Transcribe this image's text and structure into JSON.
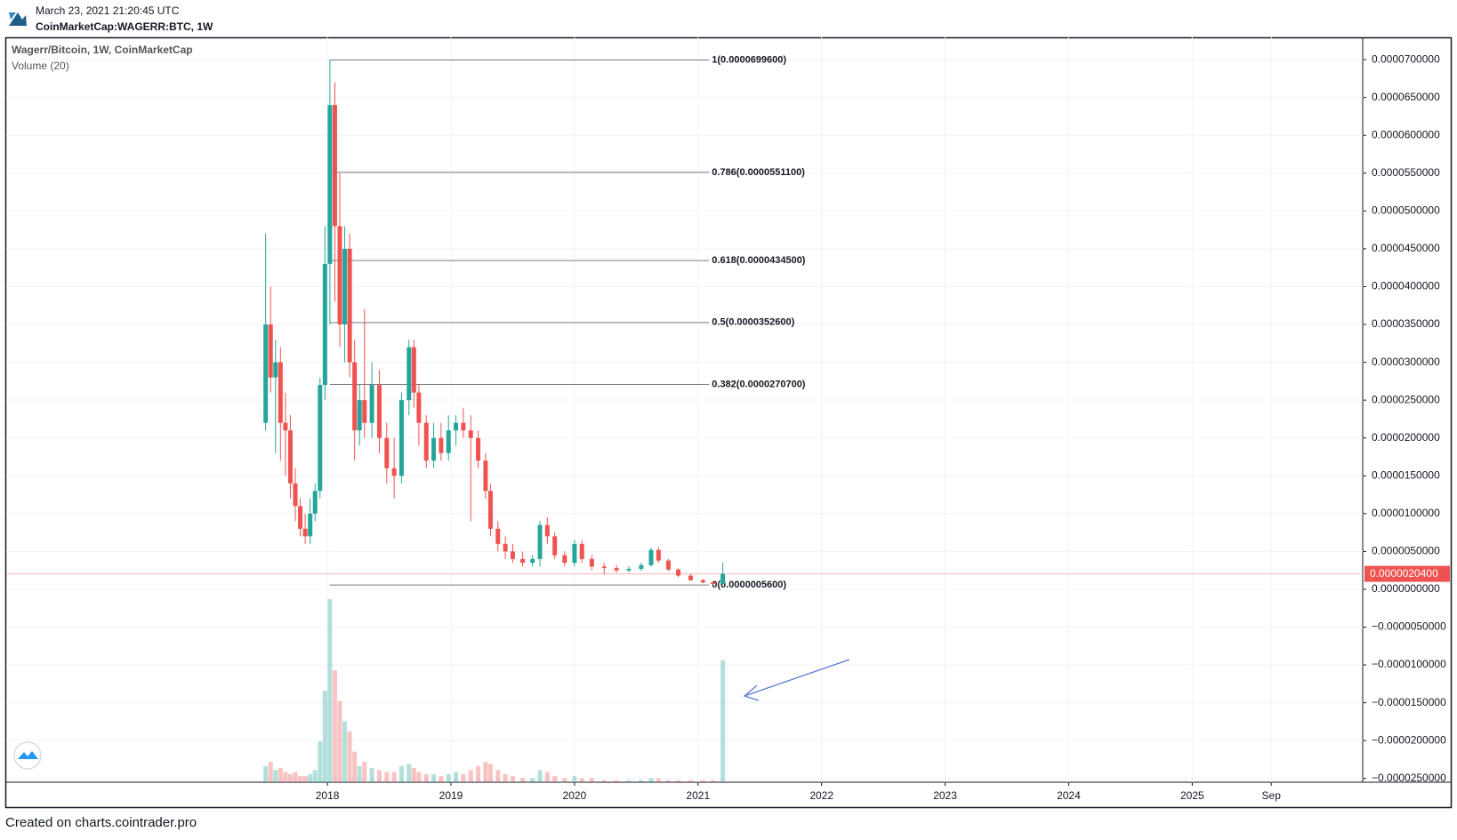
{
  "header": {
    "timestamp": "March 23, 2021 21:20:45 UTC",
    "symbol": "CoinMarketCap:WAGERR:BTC, 1W"
  },
  "footer": "Created on charts.cointrader.pro",
  "chart_data": {
    "type": "candlestick",
    "title": "Wagerr/Bitcoin, 1W, CoinMarketCap",
    "volume_label": "Volume (20)",
    "up_color": "#26a69a",
    "down_color": "#ef5350",
    "grid": true,
    "xlim": [
      2015.4,
      2026.38
    ],
    "xticks": [
      2018,
      2019,
      2020,
      2021,
      2022,
      2023,
      2024,
      2025,
      {
        "value": 2025.64,
        "label": "Sep"
      }
    ],
    "ylim": [
      -2.55e-05,
      7.295e-05
    ],
    "yticks": [
      {
        "value": 7e-05,
        "label": "0.0000700000"
      },
      {
        "value": 6.5e-05,
        "label": "0.0000650000"
      },
      {
        "value": 6e-05,
        "label": "0.0000600000"
      },
      {
        "value": 5.5e-05,
        "label": "0.0000550000"
      },
      {
        "value": 5e-05,
        "label": "0.0000500000"
      },
      {
        "value": 4.5e-05,
        "label": "0.0000450000"
      },
      {
        "value": 4e-05,
        "label": "0.0000400000"
      },
      {
        "value": 3.5e-05,
        "label": "0.0000350000"
      },
      {
        "value": 3e-05,
        "label": "0.0000300000"
      },
      {
        "value": 2.5e-05,
        "label": "0.0000250000"
      },
      {
        "value": 2e-05,
        "label": "0.0000200000"
      },
      {
        "value": 1.5e-05,
        "label": "0.0000150000"
      },
      {
        "value": 1e-05,
        "label": "0.0000100000"
      },
      {
        "value": 5e-06,
        "label": "0.0000050000"
      },
      {
        "value": 0,
        "label": "0.0000000000"
      },
      {
        "value": -5e-06,
        "label": "−0.0000050000"
      },
      {
        "value": -1e-05,
        "label": "−0.0000100000"
      },
      {
        "value": -1.5e-05,
        "label": "−0.0000150000"
      },
      {
        "value": -2e-05,
        "label": "−0.0000200000"
      },
      {
        "value": -2.5e-05,
        "label": "−0.0000250000"
      }
    ],
    "x": [
      2017.5,
      2017.54,
      2017.58,
      2017.62,
      2017.66,
      2017.7,
      2017.74,
      2017.78,
      2017.82,
      2017.86,
      2017.9,
      2017.94,
      2017.98,
      2018.02,
      2018.06,
      2018.1,
      2018.14,
      2018.18,
      2018.22,
      2018.26,
      2018.3,
      2018.36,
      2018.42,
      2018.48,
      2018.54,
      2018.6,
      2018.66,
      2018.7,
      2018.74,
      2018.8,
      2018.86,
      2018.92,
      2018.98,
      2019.04,
      2019.1,
      2019.16,
      2019.22,
      2019.28,
      2019.32,
      2019.38,
      2019.44,
      2019.5,
      2019.58,
      2019.66,
      2019.72,
      2019.78,
      2019.84,
      2019.92,
      2020.0,
      2020.06,
      2020.14,
      2020.24,
      2020.34,
      2020.44,
      2020.54,
      2020.62,
      2020.68,
      2020.76,
      2020.84,
      2020.94,
      2021.04,
      2021.12,
      2021.2
    ],
    "open": [
      2.2e-05,
      3.5e-05,
      2.8e-05,
      3e-05,
      2.2e-05,
      2.1e-05,
      1.4e-05,
      1.1e-05,
      8e-06,
      7e-06,
      1e-05,
      1.3e-05,
      2.7e-05,
      4.3e-05,
      6.4e-05,
      4.8e-05,
      3.5e-05,
      4.5e-05,
      3e-05,
      2.1e-05,
      2.5e-05,
      2.2e-05,
      2.7e-05,
      2e-05,
      1.6e-05,
      1.5e-05,
      2.5e-05,
      3.2e-05,
      2.6e-05,
      2.2e-05,
      1.7e-05,
      2e-05,
      1.8e-05,
      2.1e-05,
      2.2e-05,
      2.1e-05,
      2e-05,
      1.7e-05,
      1.3e-05,
      8e-06,
      6e-06,
      5e-06,
      4e-06,
      3.5e-06,
      4e-06,
      8.5e-06,
      7e-06,
      4.5e-06,
      3.5e-06,
      6e-06,
      4e-06,
      3e-06,
      2.8e-06,
      2.5e-06,
      2.7e-06,
      3.2e-06,
      5.2e-06,
      3.8e-06,
      2.6e-06,
      1.8e-06,
      1.2e-06,
      9e-07,
      7e-07
    ],
    "high": [
      4.7e-05,
      4e-05,
      3.3e-05,
      3.2e-05,
      2.6e-05,
      2.3e-05,
      1.6e-05,
      1.2e-05,
      1e-05,
      1.2e-05,
      1.4e-05,
      2.8e-05,
      4.8e-05,
      7e-05,
      6.7e-05,
      5.5e-05,
      4.8e-05,
      4.7e-05,
      3.3e-05,
      2.7e-05,
      3.7e-05,
      3e-05,
      2.9e-05,
      2.2e-05,
      2e-05,
      2.6e-05,
      3.3e-05,
      3.3e-05,
      2.7e-05,
      2.3e-05,
      2.2e-05,
      2.2e-05,
      2.3e-05,
      2.3e-05,
      2.4e-05,
      2.3e-05,
      2.1e-05,
      1.8e-05,
      1.4e-05,
      9e-06,
      7e-06,
      6e-06,
      5e-06,
      4.5e-06,
      9e-06,
      9.5e-06,
      7.5e-06,
      5e-06,
      6.5e-06,
      6.5e-06,
      4.5e-06,
      3.5e-06,
      3.2e-06,
      3e-06,
      3.5e-06,
      5.5e-06,
      5.6e-06,
      4e-06,
      2.8e-06,
      2e-06,
      1.4e-06,
      1e-06,
      3.5e-06
    ],
    "low": [
      2.1e-05,
      2.6e-05,
      1.8e-05,
      1.7e-05,
      1.5e-05,
      1.2e-05,
      9e-06,
      7e-06,
      6e-06,
      6e-06,
      9e-06,
      1.2e-05,
      2.5e-05,
      3.5e-05,
      3.8e-05,
      3.2e-05,
      3e-05,
      2.8e-05,
      1.7e-05,
      1.9e-05,
      2e-05,
      2e-05,
      1.8e-05,
      1.4e-05,
      1.2e-05,
      1.4e-05,
      2.3e-05,
      2.4e-05,
      1.9e-05,
      1.6e-05,
      1.6e-05,
      1.7e-05,
      1.7e-05,
      1.9e-05,
      2e-05,
      9e-06,
      1.6e-05,
      1.2e-05,
      7e-06,
      5e-06,
      4e-06,
      3.5e-06,
      3e-06,
      3e-06,
      3e-06,
      6e-06,
      4e-06,
      3e-06,
      3e-06,
      3.5e-06,
      2.5e-06,
      2e-06,
      2.2e-06,
      2.2e-06,
      2.4e-06,
      3e-06,
      3.5e-06,
      2.4e-06,
      1.6e-06,
      1.1e-06,
      8e-07,
      6e-07,
      6e-07
    ],
    "close": [
      3.5e-05,
      2.8e-05,
      3e-05,
      2.2e-05,
      2.1e-05,
      1.4e-05,
      1.1e-05,
      8e-06,
      7e-06,
      1e-05,
      1.3e-05,
      2.7e-05,
      4.3e-05,
      6.4e-05,
      4.8e-05,
      3.5e-05,
      4.5e-05,
      3e-05,
      2.1e-05,
      2.5e-05,
      2.2e-05,
      2.7e-05,
      2e-05,
      1.6e-05,
      1.5e-05,
      2.5e-05,
      3.2e-05,
      2.6e-05,
      2.2e-05,
      1.7e-05,
      2e-05,
      1.8e-05,
      2.1e-05,
      2.2e-05,
      2.1e-05,
      2e-05,
      1.7e-05,
      1.3e-05,
      8e-06,
      6e-06,
      5e-06,
      4e-06,
      3.5e-06,
      4e-06,
      8.5e-06,
      7e-06,
      4.5e-06,
      3.5e-06,
      6e-06,
      4e-06,
      3e-06,
      2.8e-06,
      2.5e-06,
      2.7e-06,
      3.2e-06,
      5.2e-06,
      3.8e-06,
      2.6e-06,
      1.8e-06,
      1.2e-06,
      9e-07,
      7e-07,
      2.04e-06
    ],
    "volume": [
      8,
      10,
      6,
      7,
      5,
      4,
      5,
      3,
      3,
      4,
      6,
      20,
      45,
      90,
      55,
      40,
      30,
      25,
      15,
      8,
      10,
      7,
      6,
      5,
      5,
      8,
      9,
      7,
      5,
      4,
      4,
      3,
      4,
      5,
      4,
      6,
      8,
      10,
      9,
      6,
      4,
      3,
      2,
      2,
      6,
      5,
      3,
      2,
      3,
      2,
      2,
      1,
      1,
      1,
      1,
      2,
      2,
      1,
      1,
      1,
      1,
      1,
      60
    ],
    "fib_x": [
      2018.02,
      2021.09
    ],
    "fib_levels": [
      {
        "value": 6.996e-05,
        "label": "1(0.0000699600)"
      },
      {
        "value": 5.511e-05,
        "label": "0.786(0.0000551100)"
      },
      {
        "value": 4.345e-05,
        "label": "0.618(0.0000434500)"
      },
      {
        "value": 3.526e-05,
        "label": "0.5(0.0000352600)"
      },
      {
        "value": 2.707e-05,
        "label": "0.382(0.0000270700)"
      },
      {
        "value": 5.6e-07,
        "label": "0(0.0000005600)"
      }
    ],
    "last_price": {
      "value": 2.04e-06,
      "label": "0.0000020400"
    }
  }
}
